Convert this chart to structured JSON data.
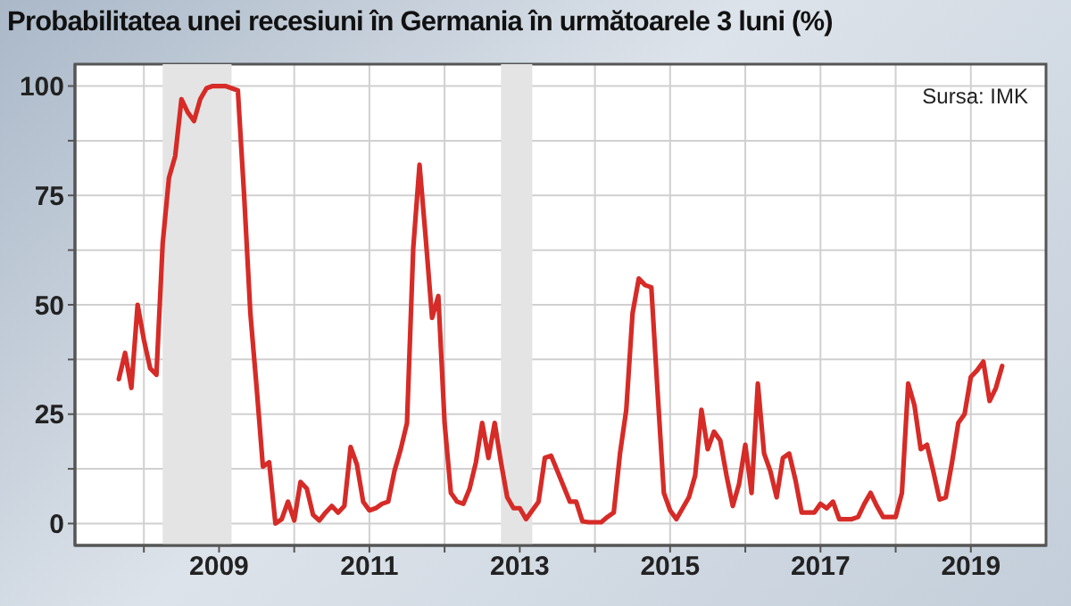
{
  "chart_data": {
    "type": "line",
    "title": "Probabilitatea unei recesiuni în Germania în următoarele 3 luni (%)",
    "annotations": [
      "Sursa: IMK"
    ],
    "x": [
      "2007-09",
      "2007-10",
      "2007-11",
      "2007-12",
      "2008-01",
      "2008-02",
      "2008-03",
      "2008-04",
      "2008-05",
      "2008-06",
      "2008-07",
      "2008-08",
      "2008-09",
      "2008-10",
      "2008-11",
      "2008-12",
      "2009-01",
      "2009-02",
      "2009-03",
      "2009-04",
      "2009-05",
      "2009-06",
      "2009-07",
      "2009-08",
      "2009-09",
      "2009-10",
      "2009-11",
      "2009-12",
      "2010-01",
      "2010-02",
      "2010-03",
      "2010-04",
      "2010-05",
      "2010-06",
      "2010-07",
      "2010-08",
      "2010-09",
      "2010-10",
      "2010-11",
      "2010-12",
      "2011-01",
      "2011-02",
      "2011-03",
      "2011-04",
      "2011-05",
      "2011-06",
      "2011-07",
      "2011-08",
      "2011-09",
      "2011-10",
      "2011-11",
      "2011-12",
      "2012-01",
      "2012-02",
      "2012-03",
      "2012-04",
      "2012-05",
      "2012-06",
      "2012-07",
      "2012-08",
      "2012-09",
      "2012-10",
      "2012-11",
      "2012-12",
      "2013-01",
      "2013-02",
      "2013-03",
      "2013-04",
      "2013-05",
      "2013-06",
      "2013-07",
      "2013-08",
      "2013-09",
      "2013-10",
      "2013-11",
      "2013-12",
      "2014-01",
      "2014-02",
      "2014-03",
      "2014-04",
      "2014-05",
      "2014-06",
      "2014-07",
      "2014-08",
      "2014-09",
      "2014-10",
      "2014-11",
      "2014-12",
      "2015-01",
      "2015-02",
      "2015-03",
      "2015-04",
      "2015-05",
      "2015-06",
      "2015-07",
      "2015-08",
      "2015-09",
      "2015-10",
      "2015-11",
      "2015-12",
      "2016-01",
      "2016-02",
      "2016-03",
      "2016-04",
      "2016-05",
      "2016-06",
      "2016-07",
      "2016-08",
      "2016-09",
      "2016-10",
      "2016-11",
      "2016-12",
      "2017-01",
      "2017-02",
      "2017-03",
      "2017-04",
      "2017-05",
      "2017-06",
      "2017-07",
      "2017-08",
      "2017-09",
      "2017-10",
      "2017-11",
      "2017-12",
      "2018-01",
      "2018-02",
      "2018-03",
      "2018-04",
      "2018-05",
      "2018-06",
      "2018-07",
      "2018-08",
      "2018-09",
      "2018-10",
      "2018-11",
      "2018-12",
      "2019-01",
      "2019-02",
      "2019-03",
      "2019-04",
      "2019-05",
      "2019-06"
    ],
    "series": [
      {
        "color": "#d62b27",
        "values": [
          33,
          39,
          31,
          50,
          42,
          35.5,
          34,
          64,
          79,
          84,
          97,
          94,
          92,
          97,
          99.5,
          100,
          100,
          100,
          99.5,
          99,
          75,
          48,
          31,
          13,
          14,
          0,
          1,
          5,
          0.7,
          9.5,
          8,
          2,
          0.7,
          2.5,
          4,
          2.5,
          4,
          17.5,
          13.5,
          5,
          3,
          3.5,
          4.5,
          5,
          12,
          17,
          23,
          63,
          82,
          65,
          47,
          52,
          23,
          7,
          5,
          4.5,
          8,
          14,
          23,
          15,
          23,
          14,
          6,
          3.5,
          3.5,
          1,
          3,
          5,
          15,
          15.5,
          12,
          8.5,
          5,
          5,
          0.5,
          0.3,
          0.3,
          0.3,
          1.5,
          2.5,
          16,
          26,
          48,
          56,
          54.5,
          54,
          30,
          7,
          3,
          1,
          3.5,
          6,
          11,
          26,
          17,
          21,
          19,
          11,
          4,
          9,
          18,
          7,
          32,
          16,
          12,
          6,
          15,
          16,
          10,
          2.5,
          2.5,
          2.5,
          4.5,
          3.5,
          5,
          1,
          1,
          1,
          1.5,
          4.5,
          7,
          4,
          1.5,
          1.5,
          1.5,
          7,
          32,
          27,
          17,
          18,
          12,
          5.5,
          6,
          14,
          23,
          25,
          33.5,
          35,
          37,
          28,
          31,
          36
        ]
      }
    ],
    "xlim": [
      "2007-02",
      "2020-01"
    ],
    "xticks": [
      {
        "value": "2008-01",
        "label": null
      },
      {
        "value": "2009-01",
        "label": "2009"
      },
      {
        "value": "2010-01",
        "label": null
      },
      {
        "value": "2011-01",
        "label": "2011"
      },
      {
        "value": "2012-01",
        "label": null
      },
      {
        "value": "2013-01",
        "label": "2013"
      },
      {
        "value": "2014-01",
        "label": null
      },
      {
        "value": "2015-01",
        "label": "2015"
      },
      {
        "value": "2016-01",
        "label": null
      },
      {
        "value": "2017-01",
        "label": "2017"
      },
      {
        "value": "2018-01",
        "label": null
      },
      {
        "value": "2019-01",
        "label": "2019"
      }
    ],
    "ylim": [
      -5,
      105
    ],
    "yticks": [
      0,
      {
        "value": 12.5,
        "label": null
      },
      25,
      {
        "value": 37.5,
        "label": null
      },
      50,
      {
        "value": 62.5,
        "label": null
      },
      75,
      {
        "value": 87.5,
        "label": null
      },
      100
    ],
    "bands": [
      {
        "axis": "x",
        "from": "2008-04",
        "to": "2009-03",
        "color": "#e4e4e4"
      },
      {
        "axis": "x",
        "from": "2012-10",
        "to": "2013-03",
        "color": "#e4e4e4"
      }
    ],
    "grid": true,
    "marker": "none",
    "line_style": "solid"
  }
}
